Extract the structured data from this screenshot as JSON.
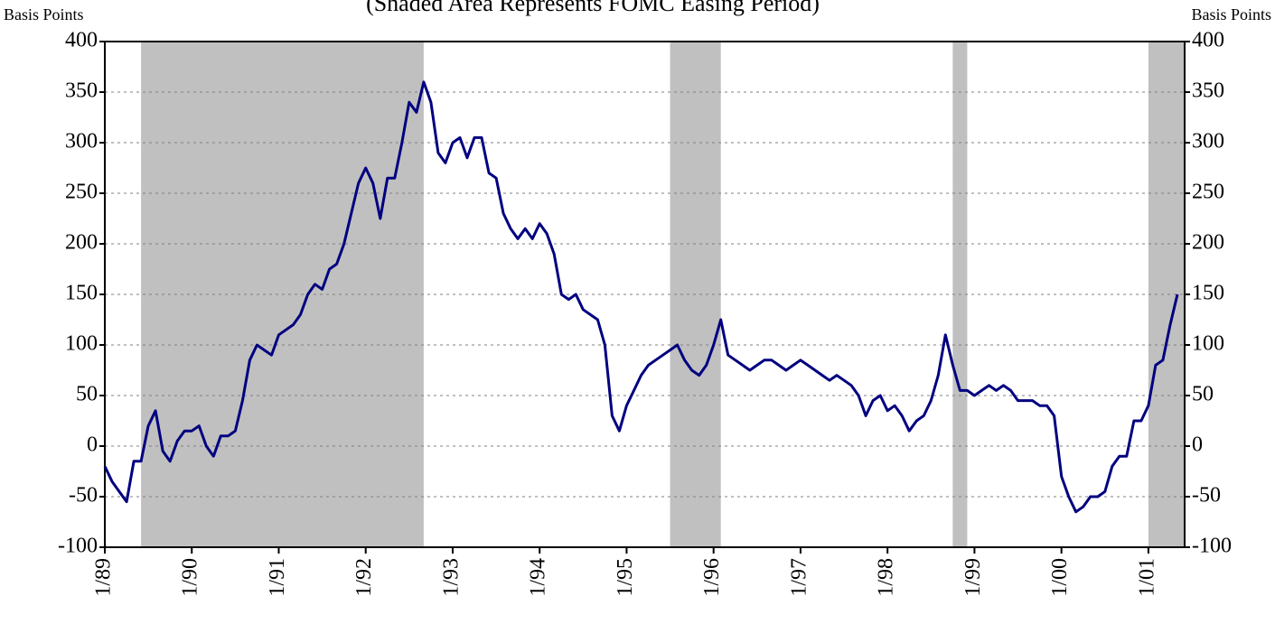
{
  "chart_data": {
    "type": "line",
    "subtitle": "(Shaded Area Represents FOMC Easing Period)",
    "y_label": "Basis Points",
    "y2_label": "Basis Points",
    "x": [
      "1989-01",
      "1989-02",
      "1989-03",
      "1989-04",
      "1989-05",
      "1989-06",
      "1989-07",
      "1989-08",
      "1989-09",
      "1989-10",
      "1989-11",
      "1989-12",
      "1990-01",
      "1990-02",
      "1990-03",
      "1990-04",
      "1990-05",
      "1990-06",
      "1990-07",
      "1990-08",
      "1990-09",
      "1990-10",
      "1990-11",
      "1990-12",
      "1991-01",
      "1991-02",
      "1991-03",
      "1991-04",
      "1991-05",
      "1991-06",
      "1991-07",
      "1991-08",
      "1991-09",
      "1991-10",
      "1991-11",
      "1991-12",
      "1992-01",
      "1992-02",
      "1992-03",
      "1992-04",
      "1992-05",
      "1992-06",
      "1992-07",
      "1992-08",
      "1992-09",
      "1992-10",
      "1992-11",
      "1992-12",
      "1993-01",
      "1993-02",
      "1993-03",
      "1993-04",
      "1993-05",
      "1993-06",
      "1993-07",
      "1993-08",
      "1993-09",
      "1993-10",
      "1993-11",
      "1993-12",
      "1994-01",
      "1994-02",
      "1994-03",
      "1994-04",
      "1994-05",
      "1994-06",
      "1994-07",
      "1994-08",
      "1994-09",
      "1994-10",
      "1994-11",
      "1994-12",
      "1995-01",
      "1995-02",
      "1995-03",
      "1995-04",
      "1995-05",
      "1995-06",
      "1995-07",
      "1995-08",
      "1995-09",
      "1995-10",
      "1995-11",
      "1995-12",
      "1996-01",
      "1996-02",
      "1996-03",
      "1996-04",
      "1996-05",
      "1996-06",
      "1996-07",
      "1996-08",
      "1996-09",
      "1996-10",
      "1996-11",
      "1996-12",
      "1997-01",
      "1997-02",
      "1997-03",
      "1997-04",
      "1997-05",
      "1997-06",
      "1997-07",
      "1997-08",
      "1997-09",
      "1997-10",
      "1997-11",
      "1997-12",
      "1998-01",
      "1998-02",
      "1998-03",
      "1998-04",
      "1998-05",
      "1998-06",
      "1998-07",
      "1998-08",
      "1998-09",
      "1998-10",
      "1998-11",
      "1998-12",
      "1999-01",
      "1999-02",
      "1999-03",
      "1999-04",
      "1999-05",
      "1999-06",
      "1999-07",
      "1999-08",
      "1999-09",
      "1999-10",
      "1999-11",
      "1999-12",
      "2000-01",
      "2000-02",
      "2000-03",
      "2000-04",
      "2000-05",
      "2000-06",
      "2000-07",
      "2000-08",
      "2000-09",
      "2000-10",
      "2000-11",
      "2000-12",
      "2001-01",
      "2001-02",
      "2001-03",
      "2001-04",
      "2001-05"
    ],
    "series": [
      {
        "color": "#000080",
        "values": [
          -20,
          -35,
          -45,
          -55,
          -15,
          -15,
          20,
          35,
          -5,
          -15,
          5,
          15,
          15,
          20,
          0,
          -10,
          10,
          10,
          15,
          45,
          85,
          100,
          95,
          90,
          110,
          115,
          120,
          130,
          150,
          160,
          155,
          175,
          180,
          200,
          230,
          260,
          275,
          260,
          225,
          265,
          265,
          300,
          340,
          330,
          360,
          340,
          290,
          280,
          300,
          305,
          285,
          305,
          305,
          270,
          265,
          230,
          215,
          205,
          215,
          205,
          220,
          210,
          190,
          150,
          145,
          150,
          135,
          130,
          125,
          100,
          30,
          15,
          40,
          55,
          70,
          80,
          85,
          90,
          95,
          100,
          85,
          75,
          70,
          80,
          100,
          125,
          90,
          85,
          80,
          75,
          80,
          85,
          85,
          80,
          75,
          80,
          85,
          80,
          75,
          70,
          65,
          70,
          65,
          60,
          50,
          30,
          45,
          50,
          35,
          40,
          30,
          15,
          25,
          30,
          45,
          70,
          110,
          80,
          55,
          55,
          50,
          55,
          60,
          55,
          60,
          55,
          45,
          45,
          45,
          40,
          40,
          30,
          -30,
          -50,
          -65,
          -60,
          -50,
          -50,
          -45,
          -20,
          -10,
          -10,
          25,
          25,
          40,
          80,
          85,
          120,
          150
        ]
      }
    ],
    "shaded_periods": [
      {
        "start": "1989-06",
        "end": "1992-09"
      },
      {
        "start": "1995-07",
        "end": "1996-02"
      },
      {
        "start": "1998-10",
        "end": "1998-12"
      },
      {
        "start": "2001-01",
        "end": "2001-06"
      }
    ],
    "shade_color": "#c0c0c0",
    "xlim": [
      "1989-01",
      "2001-06"
    ],
    "xticks": [
      {
        "value": "1989-01",
        "label": "1/89"
      },
      {
        "value": "1990-01",
        "label": "1/90"
      },
      {
        "value": "1991-01",
        "label": "1/91"
      },
      {
        "value": "1992-01",
        "label": "1/92"
      },
      {
        "value": "1993-01",
        "label": "1/93"
      },
      {
        "value": "1994-01",
        "label": "1/94"
      },
      {
        "value": "1995-01",
        "label": "1/95"
      },
      {
        "value": "1996-01",
        "label": "1/96"
      },
      {
        "value": "1997-01",
        "label": "1/97"
      },
      {
        "value": "1998-01",
        "label": "1/98"
      },
      {
        "value": "1999-01",
        "label": "1/99"
      },
      {
        "value": "2000-01",
        "label": "1/00"
      },
      {
        "value": "2001-01",
        "label": "1/01"
      }
    ],
    "ylim": [
      -100,
      400
    ],
    "yticks": [
      -100,
      -50,
      0,
      50,
      100,
      150,
      200,
      250,
      300,
      350,
      400
    ],
    "y2lim": [
      -100,
      400
    ],
    "y2ticks": [
      -100,
      -50,
      0,
      50,
      100,
      150,
      200,
      250,
      300,
      350,
      400
    ],
    "grid": true
  }
}
